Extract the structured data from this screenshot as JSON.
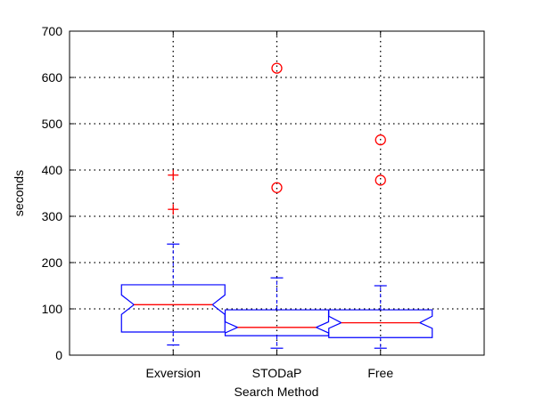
{
  "chart_data": {
    "type": "box",
    "title": "",
    "xlabel": "Search Method",
    "ylabel": "seconds",
    "ylim": [
      0,
      700
    ],
    "yticks": [
      0,
      100,
      200,
      300,
      400,
      500,
      600,
      700
    ],
    "grid": true,
    "notched": true,
    "categories": [
      "Exversion",
      "STODaP",
      "Free"
    ],
    "boxes": [
      {
        "name": "Exversion",
        "whisker_low": 22,
        "q1": 50,
        "median": 109,
        "q3": 152,
        "whisker_high": 240,
        "notch_low": 88,
        "notch_high": 130,
        "outliers": [
          315,
          389
        ],
        "outlier_marker": "plus"
      },
      {
        "name": "STODaP",
        "whisker_low": 15,
        "q1": 42,
        "median": 60,
        "q3": 98,
        "whisker_high": 167,
        "notch_low": 48,
        "notch_high": 72,
        "outliers": [
          362,
          620
        ],
        "outlier_marker": "circle"
      },
      {
        "name": "Free",
        "whisker_low": 15,
        "q1": 38,
        "median": 70,
        "q3": 98,
        "whisker_high": 150,
        "notch_low": 58,
        "notch_high": 84,
        "outliers": [
          378,
          465
        ],
        "outlier_marker": "circle"
      }
    ],
    "colors": {
      "box": "#0000ff",
      "median": "#ff0000",
      "outlier": "#ff0000",
      "grid": "#000000"
    }
  }
}
